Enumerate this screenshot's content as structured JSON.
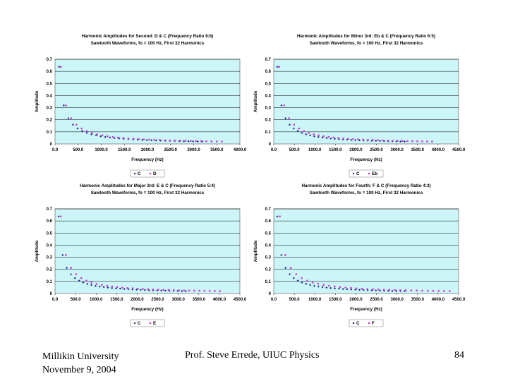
{
  "footer": {
    "institution": "Millikin University",
    "date": "November 9, 2004",
    "author": "Prof. Steve Errede, UIUC Physics",
    "page_number": "84"
  },
  "colors": {
    "plot_background": "#ccf5f7",
    "series_C": "#1a2a8a",
    "series_other": "#d23ad8",
    "gridline": "#000000"
  },
  "chart_data": [
    {
      "type": "scatter",
      "title": "Harmonic Amplitudes for Second: D & C (Frequency Ratio 9:8)",
      "subtitle": "Sawtooth Waveforms, fo = 100 Hz, First 32 Harmonics",
      "xlabel": "Frequency (Hz)",
      "ylabel": "Amplitude",
      "xlim": [
        0,
        4000
      ],
      "ylim": [
        0,
        0.7
      ],
      "xticks": [
        "0.0",
        "500.0",
        "1000.0",
        "1500.0",
        "2000.0",
        "2500.0",
        "3000.0",
        "3500.0",
        "4000.0"
      ],
      "yticks": [
        "0",
        "0.1",
        "0.2",
        "0.3",
        "0.4",
        "0.5",
        "0.6",
        "0.7"
      ],
      "grid": true,
      "legend": "bottom-center",
      "series": [
        {
          "name": "C",
          "fundamental": 100,
          "harmonics": 32,
          "first_amplitude": 0.637
        },
        {
          "name": "D",
          "fundamental": 112.5,
          "harmonics": 32,
          "first_amplitude": 0.637
        }
      ]
    },
    {
      "type": "scatter",
      "title": "Harmonic Amplitudes for Minor 3rd: Eb & C (Frequency Ratio 6:5)",
      "subtitle": "Sawtooth Waveforms, fo = 100 Hz, First 32 Harmonics",
      "xlabel": "Frequency (Hz)",
      "ylabel": "Amplitude",
      "xlim": [
        0,
        4500
      ],
      "ylim": [
        0,
        0.7
      ],
      "xticks": [
        "0.0",
        "500.0",
        "1000.0",
        "1500.0",
        "2000.0",
        "2500.0",
        "3000.0",
        "3500.0",
        "4000.0",
        "4500.0"
      ],
      "yticks": [
        "0",
        "0.1",
        "0.2",
        "0.3",
        "0.4",
        "0.5",
        "0.6",
        "0.7"
      ],
      "grid": true,
      "legend": "bottom-center",
      "series": [
        {
          "name": "C",
          "fundamental": 100,
          "harmonics": 32,
          "first_amplitude": 0.637
        },
        {
          "name": "Eb",
          "fundamental": 120,
          "harmonics": 32,
          "first_amplitude": 0.637
        }
      ]
    },
    {
      "type": "scatter",
      "title": "Harmonic Amplitudes for Major 3rd: E & C (Frequency Ratio 5:4)",
      "subtitle": "Sawtooth Waveforms, fo = 100 Hz, First 32 Harmonics",
      "xlabel": "Frequency (Hz)",
      "ylabel": "Amplitude",
      "xlim": [
        0,
        4500
      ],
      "ylim": [
        0,
        0.7
      ],
      "xticks": [
        "0.0",
        "500.0",
        "1000.0",
        "1500.0",
        "2000.0",
        "2500.0",
        "3000.0",
        "3500.0",
        "4000.0",
        "4500.0"
      ],
      "yticks": [
        "0",
        "0.1",
        "0.2",
        "0.3",
        "0.4",
        "0.5",
        "0.6",
        "0.7"
      ],
      "grid": true,
      "legend": "bottom-center",
      "series": [
        {
          "name": "C",
          "fundamental": 100,
          "harmonics": 32,
          "first_amplitude": 0.637
        },
        {
          "name": "E",
          "fundamental": 125,
          "harmonics": 32,
          "first_amplitude": 0.637
        }
      ]
    },
    {
      "type": "scatter",
      "title": "Harmonic Amplitudes for Fourth: F & C (Frequency Ratio 4:3)",
      "subtitle": "Sawtooth Waveforms, fo = 100 Hz, First 32 Harmonics",
      "xlabel": "Frequency (Hz)",
      "ylabel": "Amplitude",
      "xlim": [
        0,
        4500
      ],
      "ylim": [
        0,
        0.7
      ],
      "xticks": [
        "0.0",
        "500.0",
        "1000.0",
        "1500.0",
        "2000.0",
        "2500.0",
        "3000.0",
        "3500.0",
        "4000.0",
        "4500.0"
      ],
      "yticks": [
        "0",
        "0.1",
        "0.2",
        "0.3",
        "0.4",
        "0.5",
        "0.6",
        "0.7"
      ],
      "grid": true,
      "legend": "bottom-center",
      "series": [
        {
          "name": "C",
          "fundamental": 100,
          "harmonics": 32,
          "first_amplitude": 0.637
        },
        {
          "name": "F",
          "fundamental": 133.333,
          "harmonics": 32,
          "first_amplitude": 0.637
        }
      ]
    }
  ]
}
